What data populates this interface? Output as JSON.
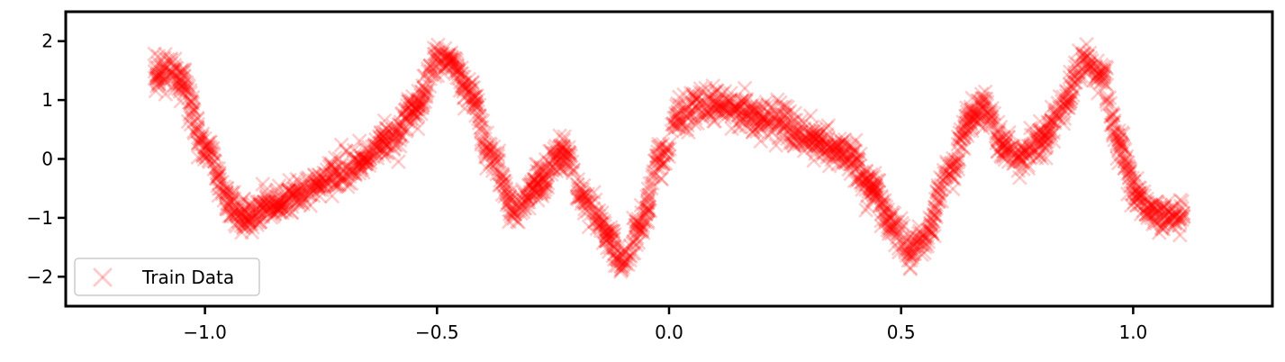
{
  "chart_data": {
    "type": "scatter",
    "title": "",
    "xlabel": "",
    "ylabel": "",
    "xlim": [
      -1.3,
      1.3
    ],
    "ylim": [
      -2.5,
      2.5
    ],
    "x_ticks": [
      -1.0,
      -0.5,
      0.0,
      0.5,
      1.0
    ],
    "x_tick_labels": [
      "−1.0",
      "−0.5",
      "0.0",
      "0.5",
      "1.0"
    ],
    "y_ticks": [
      -2,
      -1,
      0,
      1,
      2
    ],
    "y_tick_labels": [
      "−2",
      "−1",
      "0",
      "1",
      "2"
    ],
    "grid": false,
    "legend_position": "lower-left",
    "marker": "x",
    "series": [
      {
        "name": "Train Data",
        "color": "#ff0000",
        "alpha": 0.2,
        "x_range": [
          -1.11,
          1.11
        ],
        "trend": {
          "x": [
            -1.11,
            -1.08,
            -1.05,
            -1.0,
            -0.95,
            -0.92,
            -0.85,
            -0.8,
            -0.7,
            -0.6,
            -0.55,
            -0.5,
            -0.47,
            -0.43,
            -0.38,
            -0.33,
            -0.28,
            -0.23,
            -0.18,
            -0.13,
            -0.1,
            -0.06,
            -0.02,
            0.02,
            0.06,
            0.1,
            0.2,
            0.3,
            0.38,
            0.44,
            0.48,
            0.52,
            0.55,
            0.6,
            0.65,
            0.68,
            0.72,
            0.76,
            0.8,
            0.85,
            0.89,
            0.93,
            0.97,
            1.0,
            1.04,
            1.08,
            1.11
          ],
          "y": [
            1.4,
            1.6,
            1.3,
            0.2,
            -0.7,
            -1.0,
            -0.8,
            -0.6,
            -0.2,
            0.3,
            0.8,
            1.6,
            1.65,
            1.1,
            0.0,
            -0.9,
            -0.4,
            0.1,
            -0.7,
            -1.3,
            -1.8,
            -1.1,
            0.0,
            0.7,
            0.9,
            0.9,
            0.7,
            0.4,
            0.1,
            -0.5,
            -1.1,
            -1.55,
            -1.4,
            -0.3,
            0.7,
            0.9,
            0.2,
            0.0,
            0.3,
            0.9,
            1.65,
            1.4,
            0.3,
            -0.5,
            -0.9,
            -1.0,
            -1.0
          ]
        }
      }
    ]
  }
}
